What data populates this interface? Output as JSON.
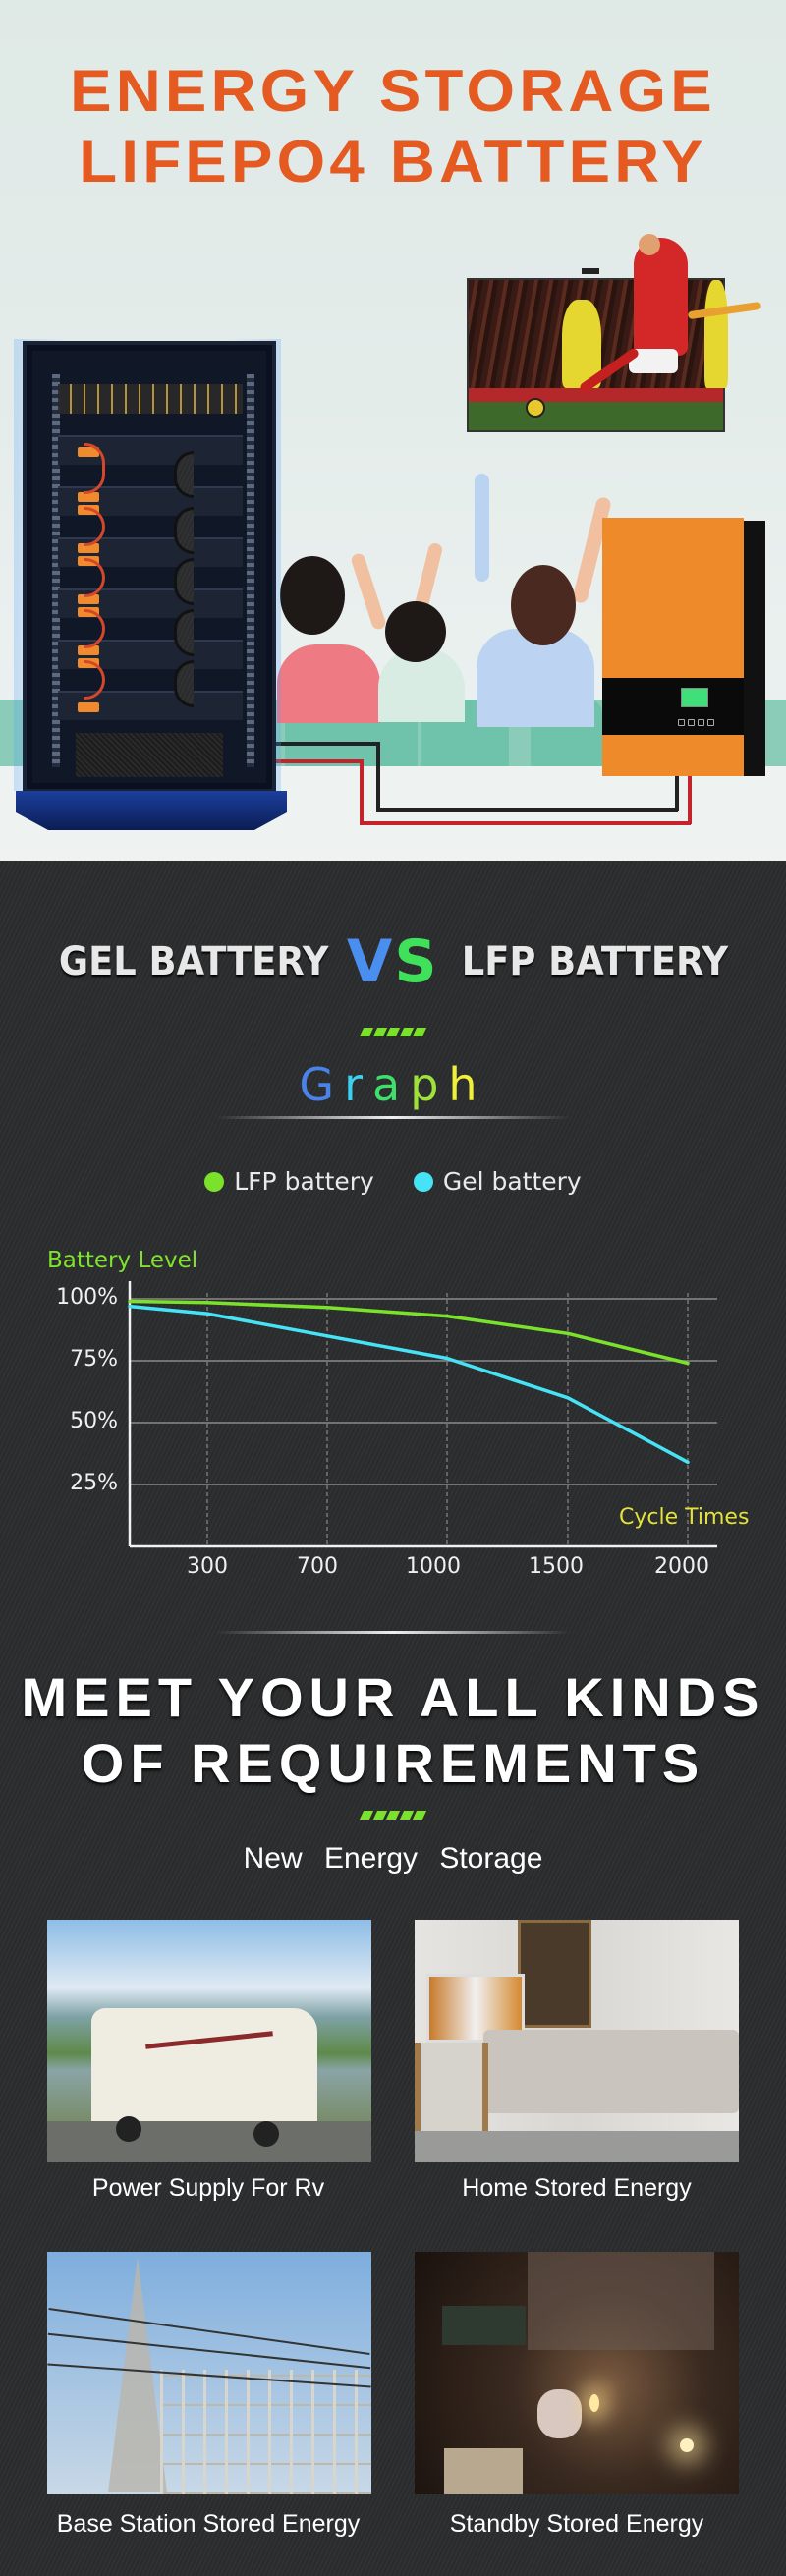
{
  "hero": {
    "title_line1": "ENERGY  STORAGE",
    "title_line2": "LIFEPO4  BATTERY",
    "title_color": "#e45a21",
    "scene": {
      "cabinet": "battery-rack-cabinet",
      "tv": "soccer-match-tv",
      "inverter": "orange-hybrid-inverter",
      "people": "family-cheering-on-sofa"
    }
  },
  "comparison": {
    "left": "GEL BATTERY",
    "vs_v": "V",
    "vs_s": "S",
    "right": "LFP BATTERY",
    "graph_title_letters": [
      "G",
      "r",
      "a",
      "p",
      "h"
    ],
    "graph_title_colors": [
      "#4a82e8",
      "#3cd0f0",
      "#3fe06a",
      "#9fe03a",
      "#f0f03a"
    ]
  },
  "legend": {
    "items": [
      {
        "label": "LFP battery",
        "color": "#7be22b"
      },
      {
        "label": "Gel battery",
        "color": "#45e3f5"
      }
    ]
  },
  "chart_data": {
    "type": "line",
    "title": "Graph",
    "xlabel": "Cycle Times",
    "ylabel": "Battery Level",
    "x_ticks": [
      "300",
      "700",
      "1000",
      "1500",
      "2000"
    ],
    "y_ticks": [
      "100%",
      "75%",
      "50%",
      "25%"
    ],
    "ylim": [
      0,
      100
    ],
    "grid": true,
    "legend_position": "top",
    "x": [
      0,
      300,
      700,
      1000,
      1500,
      2000
    ],
    "series": [
      {
        "name": "LFP battery",
        "color": "#7be22b",
        "values": [
          99,
          98.5,
          96.5,
          93,
          86,
          74
        ]
      },
      {
        "name": "Gel battery",
        "color": "#45e3f5",
        "values": [
          97,
          94,
          85,
          76,
          60,
          34
        ]
      }
    ]
  },
  "requirements": {
    "title_line1": "MEET  YOUR  ALL  KINDS",
    "title_line2": "OF  REQUIREMENTS",
    "subtitle": "New Energy Storage",
    "cards": [
      {
        "label": "Power Supply For Rv",
        "scene": "rv-camper-mountains"
      },
      {
        "label": "Home Stored Energy",
        "scene": "living-room"
      },
      {
        "label": "Base Station Stored Energy",
        "scene": "power-substation"
      },
      {
        "label": "Standby Stored Energy",
        "scene": "classroom-blackout"
      }
    ]
  }
}
